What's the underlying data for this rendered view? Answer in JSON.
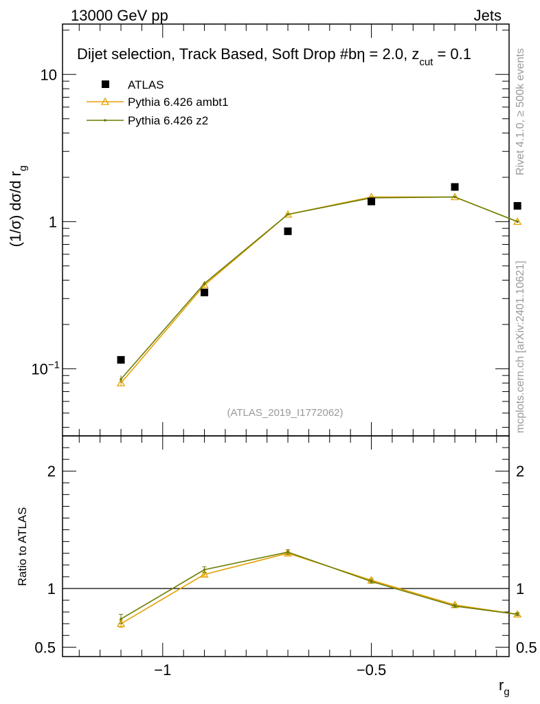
{
  "header": {
    "left": "13000 GeV pp",
    "right": "Jets"
  },
  "main_title": "Dijet selection, Track Based, Soft Drop #b",
  "title_eta": "η = 2.0, z",
  "title_cut": "cut",
  "title_tail": " = 0.1",
  "side_labels": {
    "rivet": "Rivet 4.1.0, ≥ 500k events",
    "mcplots": "mcplots.cern.ch [arXiv:2401.10621]"
  },
  "analysis_id": "(ATLAS_2019_I1772062)",
  "colors": {
    "data": "#000000",
    "ambt1": "#e5a000",
    "z2": "#6b7c00"
  },
  "chart_data": [
    {
      "type": "scatter",
      "panel": "main",
      "ylabel": "(1/σ) dσ/d r",
      "ylabel_sub": "g",
      "yscale": "log",
      "xlim": [
        -1.24,
        -0.17
      ],
      "ylim": [
        0.035,
        22
      ],
      "y_tick_labels": [
        {
          "value": 0.1,
          "base": "10",
          "exp": "−1"
        },
        {
          "value": 1,
          "label": "1"
        },
        {
          "value": 10,
          "label": "10"
        }
      ],
      "x": [
        -1.1,
        -0.9,
        -0.7,
        -0.5,
        -0.3,
        -0.15
      ],
      "series": [
        {
          "name": "ATLAS",
          "marker": "square",
          "values": [
            0.115,
            0.33,
            0.86,
            1.37,
            1.72,
            1.28
          ]
        },
        {
          "name": "Pythia 6.426 ambt1",
          "marker": "triangle",
          "values": [
            0.08,
            0.37,
            1.12,
            1.47,
            1.47,
            1.0
          ],
          "errors": [
            0.004,
            0.012,
            0.02,
            0.02,
            0.02,
            0.015
          ]
        },
        {
          "name": "Pythia 6.426 z2",
          "marker": "dot",
          "values": [
            0.085,
            0.38,
            1.12,
            1.45,
            1.47,
            1.0
          ],
          "errors": [
            0.005,
            0.012,
            0.02,
            0.02,
            0.02,
            0.015
          ]
        }
      ],
      "legend_position": "top-left"
    },
    {
      "type": "line",
      "panel": "ratio",
      "ylabel": "Ratio to ATLAS",
      "xlabel": "r",
      "xlabel_sub": "g",
      "ylim": [
        0.42,
        2.3
      ],
      "y_tick_labels": [
        "0.5",
        "1",
        "2"
      ],
      "y_ticks": [
        0.5,
        1,
        2
      ],
      "x_tick_labels": [
        "−1",
        "−0.5"
      ],
      "x_ticks": [
        -1,
        -0.5
      ],
      "reference_line": 1,
      "x": [
        -1.1,
        -0.9,
        -0.7,
        -0.5,
        -0.3,
        -0.15
      ],
      "series": [
        {
          "name": "Pythia 6.426 ambt1",
          "values": [
            0.7,
            1.12,
            1.3,
            1.07,
            0.86,
            0.78
          ],
          "errors": [
            0.03,
            0.02,
            0.02,
            0.015,
            0.012,
            0.012
          ]
        },
        {
          "name": "Pythia 6.426 z2",
          "values": [
            0.74,
            1.16,
            1.31,
            1.06,
            0.85,
            0.78
          ],
          "errors": [
            0.04,
            0.025,
            0.02,
            0.015,
            0.012,
            0.012
          ]
        }
      ]
    }
  ]
}
